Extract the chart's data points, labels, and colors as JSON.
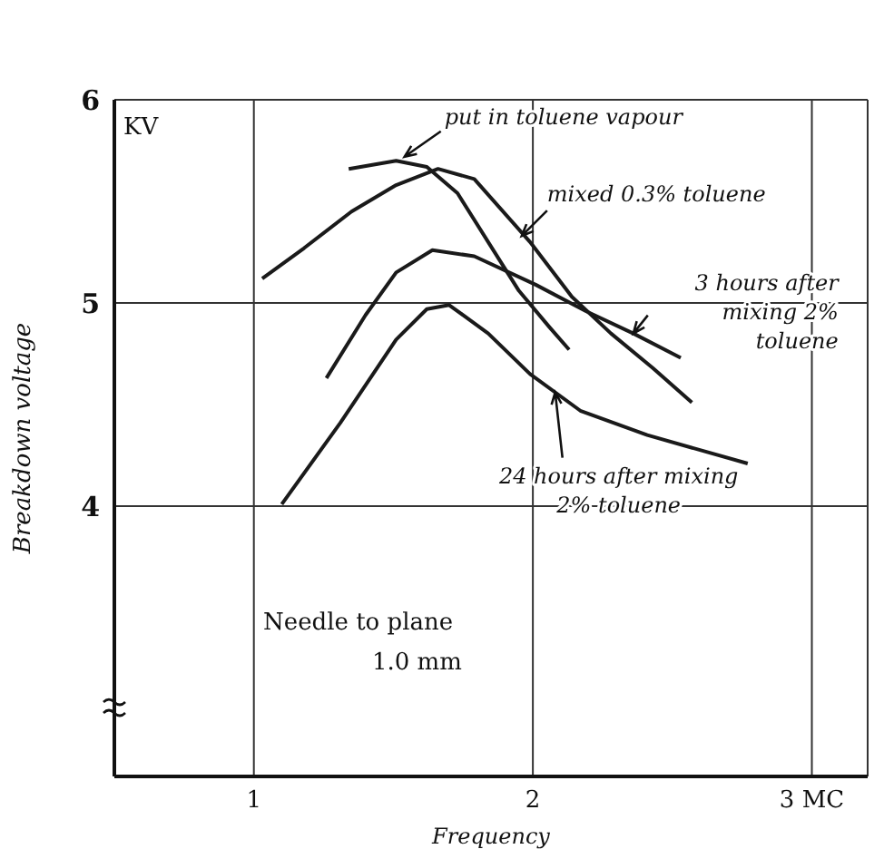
{
  "chart_data": {
    "type": "line",
    "xlabel": "Frequency",
    "ylabel": "Breakdown voltage",
    "xlim": [
      0.5,
      3.2
    ],
    "xticks": [
      1,
      2,
      {
        "value": 3,
        "label": "3 MC"
      }
    ],
    "ylim": [
      2.67,
      6
    ],
    "yticks": [
      4,
      5,
      6
    ],
    "grid": true,
    "marker": "none",
    "line_style": "solid",
    "series": [
      {
        "color": "#1a1a1a",
        "x": [
          1.34,
          1.51,
          1.62,
          1.73,
          1.84,
          1.95,
          2.06,
          2.13
        ],
        "values": [
          5.66,
          5.7,
          5.67,
          5.54,
          5.3,
          5.06,
          4.88,
          4.77
        ]
      },
      {
        "color": "#1a1a1a",
        "x": [
          1.03,
          1.18,
          1.35,
          1.51,
          1.66,
          1.79,
          1.99,
          2.14,
          2.28,
          2.43,
          2.57
        ],
        "values": [
          5.12,
          5.27,
          5.45,
          5.58,
          5.66,
          5.61,
          5.3,
          5.03,
          4.85,
          4.68,
          4.51
        ]
      },
      {
        "color": "#1a1a1a",
        "x": [
          1.26,
          1.4,
          1.51,
          1.64,
          1.79,
          2.01,
          2.19,
          2.36,
          2.53
        ],
        "values": [
          4.63,
          4.94,
          5.15,
          5.26,
          5.23,
          5.09,
          4.96,
          4.85,
          4.73
        ]
      },
      {
        "color": "#1a1a1a",
        "x": [
          1.1,
          1.31,
          1.51,
          1.62,
          1.7,
          1.84,
          1.99,
          2.17,
          2.41,
          2.77
        ],
        "values": [
          4.01,
          4.41,
          4.82,
          4.97,
          4.99,
          4.85,
          4.65,
          4.47,
          4.35,
          4.21
        ]
      }
    ],
    "annotations": [
      {
        "text": "put in toluene vapour",
        "x": 1.54,
        "y": 5.72
      },
      {
        "text": "mixed 0.3% toluene",
        "x": 1.96,
        "y": 5.33
      },
      {
        "text": "3 hours after mixing 2% toluene",
        "x": 2.36,
        "y": 4.85
      },
      {
        "text": "24 hours after mixing 2% toluene",
        "x": 2.08,
        "y": 4.56
      },
      "Needle to plane 1.0 mm",
      "KV"
    ]
  }
}
